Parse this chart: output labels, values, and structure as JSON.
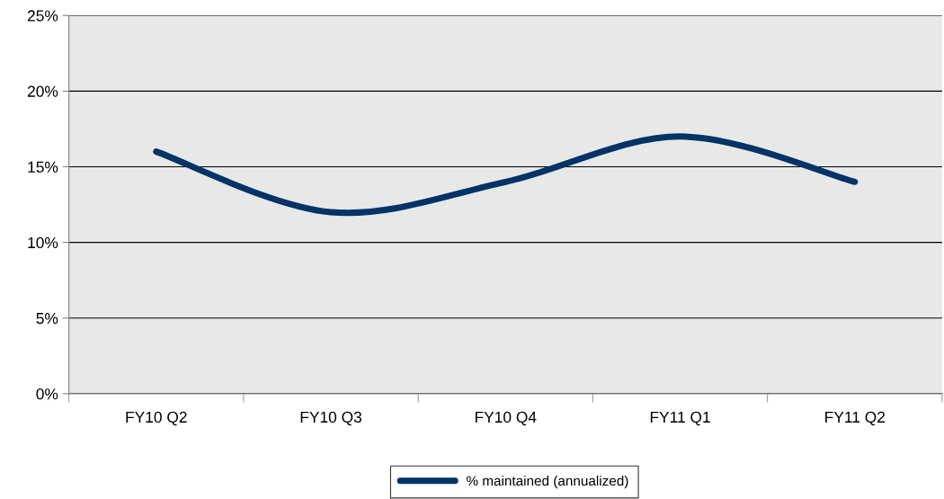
{
  "chart_data": {
    "type": "line",
    "categories": [
      "FY10 Q2",
      "FY10 Q3",
      "FY10 Q4",
      "FY11 Q1",
      "FY11 Q2"
    ],
    "series": [
      {
        "name": "% maintained (annualized)",
        "color": "#003366",
        "values": [
          16,
          12,
          14,
          17,
          14
        ]
      }
    ],
    "ylim": [
      0,
      25
    ],
    "yticks": [
      {
        "value": 0,
        "label": "0%"
      },
      {
        "value": 5,
        "label": "5%"
      },
      {
        "value": 10,
        "label": "10%"
      },
      {
        "value": 15,
        "label": "15%"
      },
      {
        "value": 20,
        "label": "20%"
      },
      {
        "value": 25,
        "label": "25%"
      }
    ],
    "grid": "y",
    "legend": "bottom",
    "marker": "none",
    "line_style": "solid"
  }
}
